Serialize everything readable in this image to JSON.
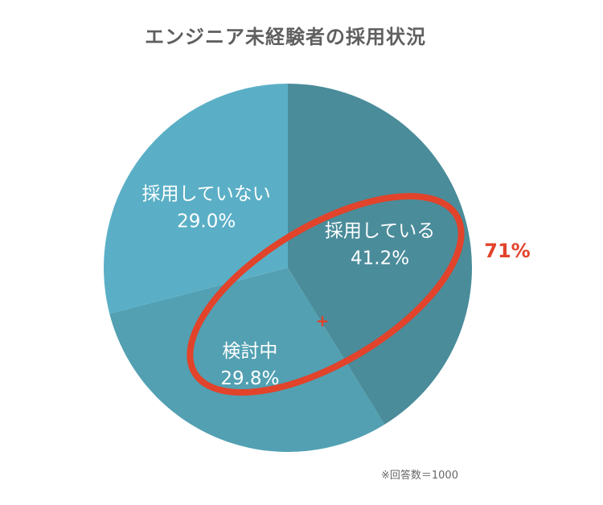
{
  "chart_data": {
    "type": "pie",
    "title": "エンジニア未経験者の採用状況",
    "unit": "%",
    "slices": [
      {
        "label": "採用している",
        "value": 41.2,
        "value_label": "41.2%",
        "color": "#4a8c9a"
      },
      {
        "label": "検討中",
        "value": 29.8,
        "value_label": "29.8%",
        "color": "#52a0b2"
      },
      {
        "label": "採用していない",
        "value": 29.0,
        "value_label": "29.0%",
        "color": "#5aafc6"
      }
    ],
    "annotation": {
      "highlighted_slices": [
        "採用している",
        "検討中"
      ],
      "combined_label": "71%",
      "color": "#e1432b"
    },
    "note": "※回答数＝1000"
  }
}
